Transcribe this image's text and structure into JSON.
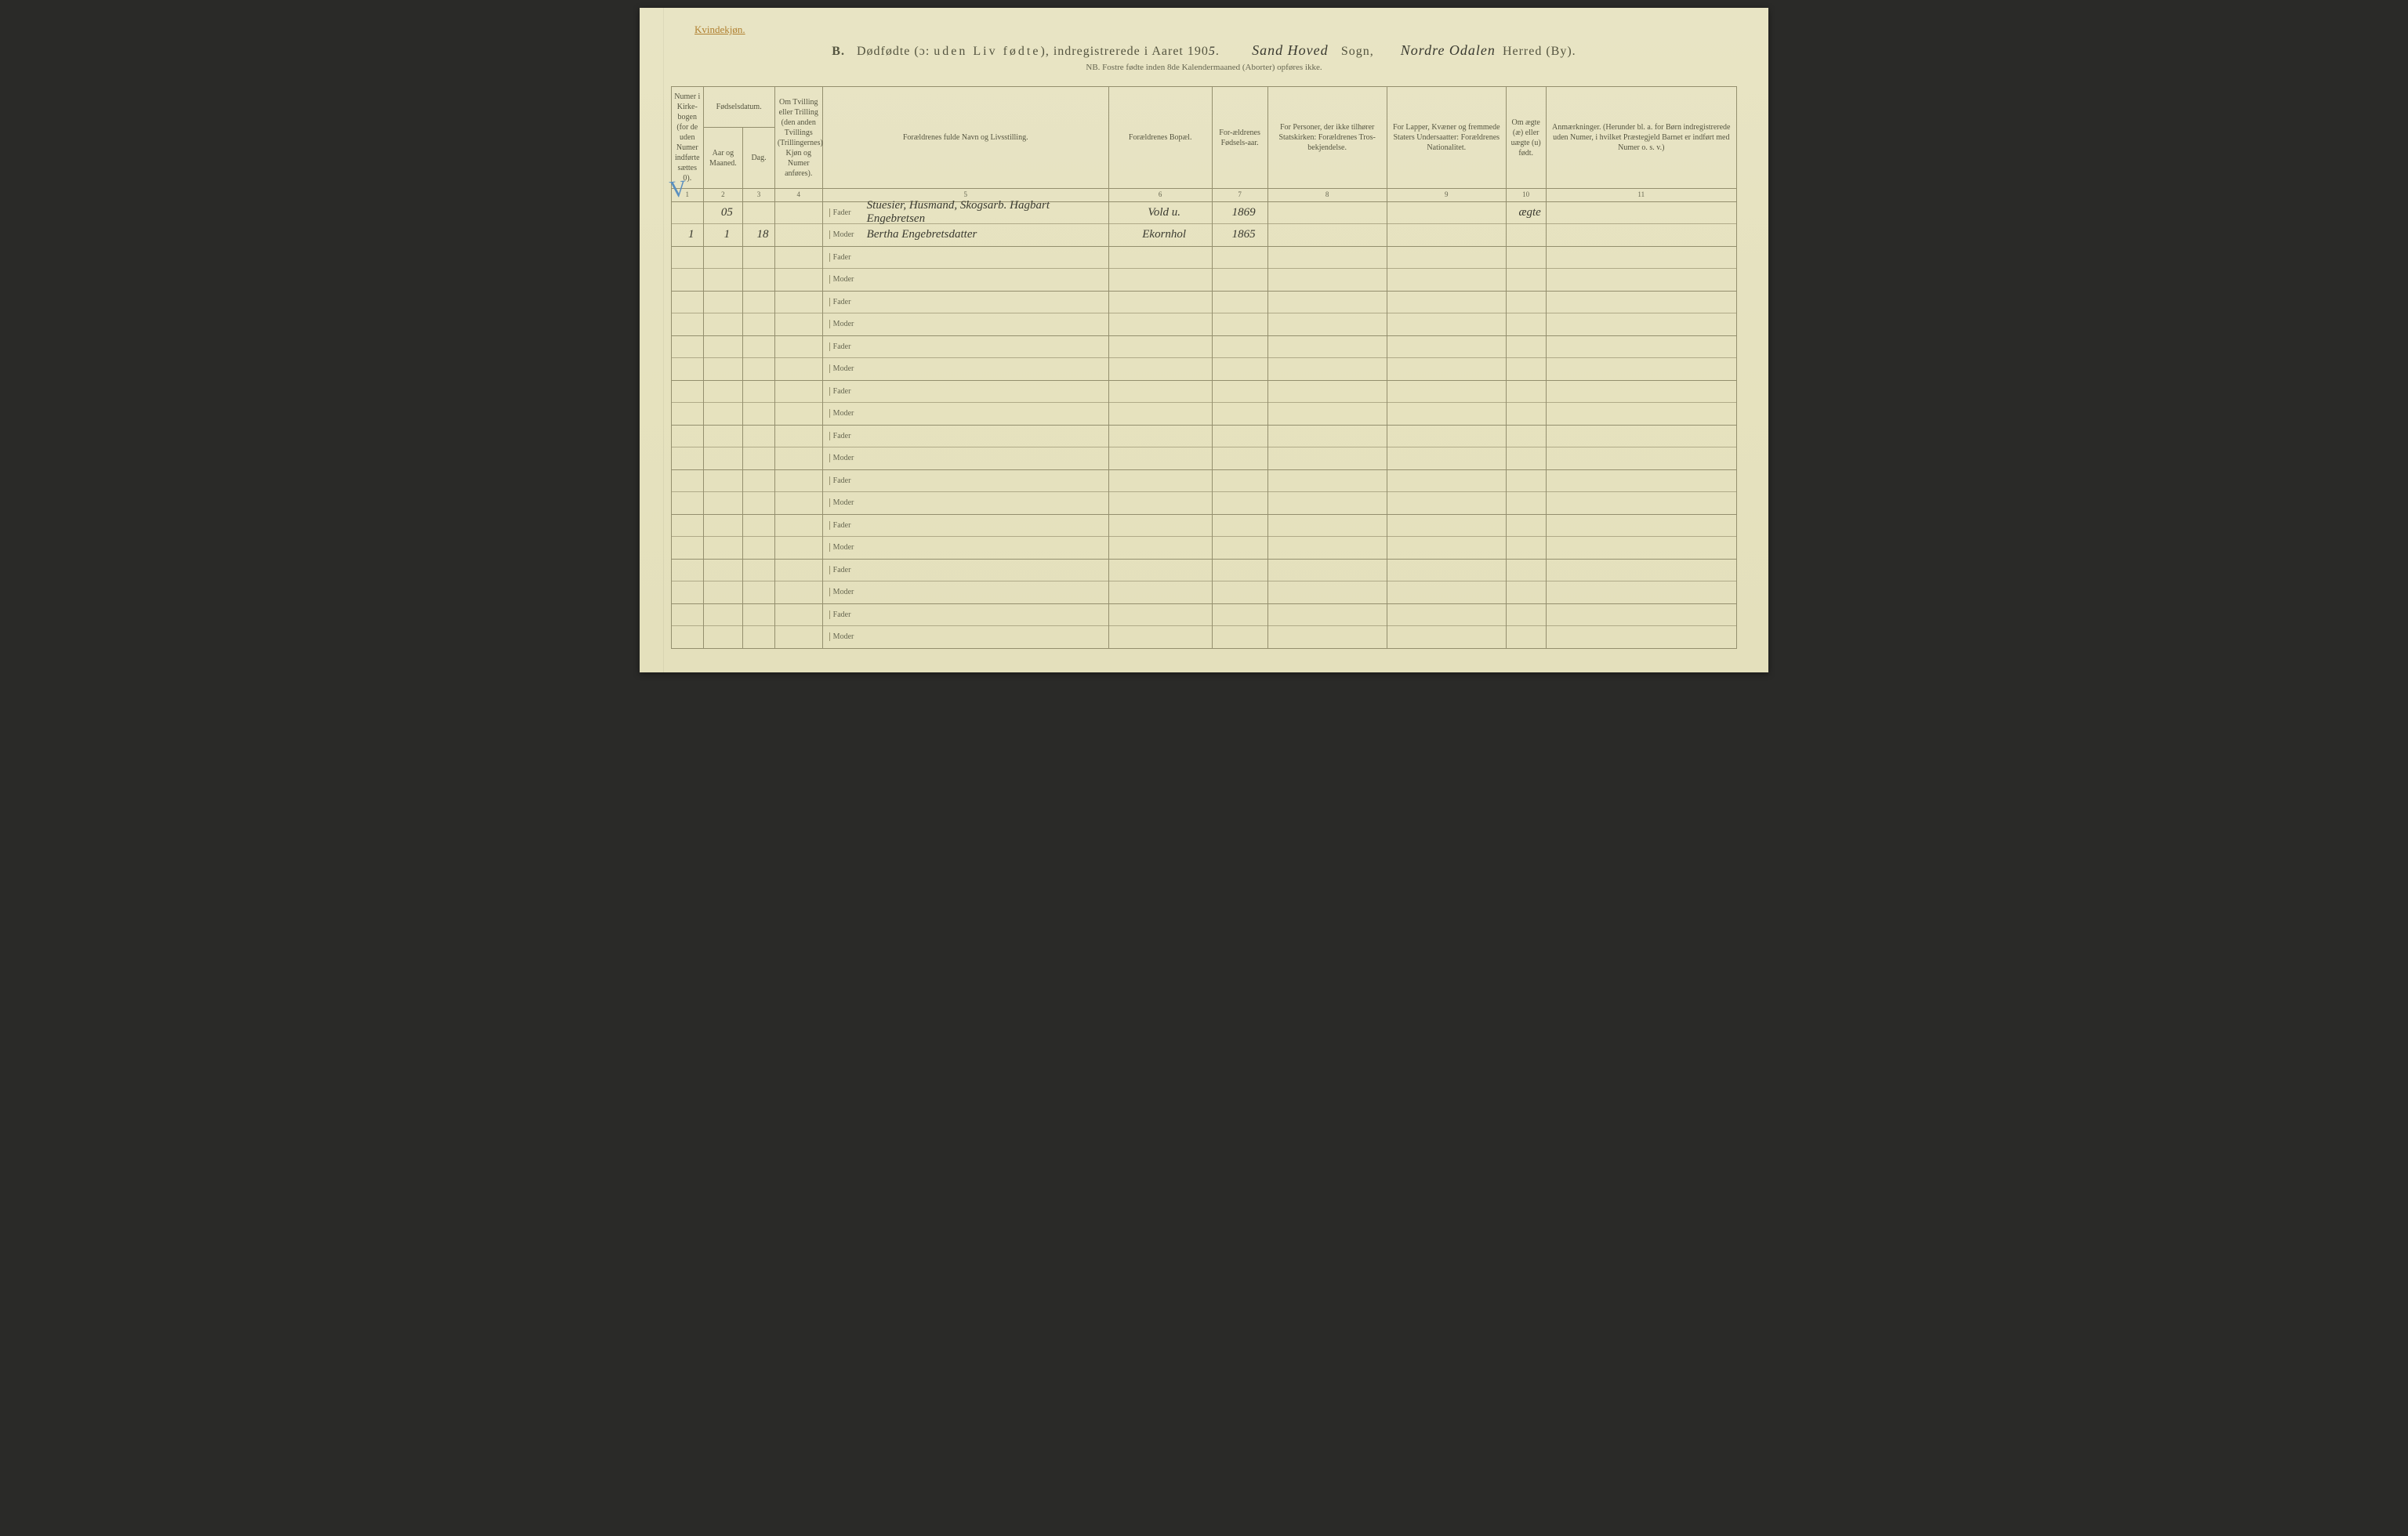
{
  "header": {
    "gender_label": "Kvindekjøn.",
    "section_letter": "B.",
    "title_prefix": "Dødfødte (ɔ:",
    "title_spaced": "uden Liv fødte",
    "title_suffix": "), indregistrerede i Aaret 190",
    "year_digit": "5",
    "sogn_value": "Sand Hoved",
    "sogn_label": "Sogn,",
    "herred_value": "Nordre Odalen",
    "herred_label": "Herred (By).",
    "subtitle": "NB.  Fostre fødte inden 8de Kalendermaaned (Aborter) opføres ikke."
  },
  "columns": {
    "c1": "Numer i Kirke-bogen (for de uden Numer indførte sættes 0).",
    "c2_group": "Fødselsdatum.",
    "c2a": "Aar og Maaned.",
    "c2b": "Dag.",
    "c4": "Om Tvilling eller Trilling (den anden Tvillings (Trillingernes) Kjøn og Numer anføres).",
    "c5": "Forældrenes fulde Navn og Livsstilling.",
    "c6": "Forældrenes Bopæl.",
    "c7": "For-ældrenes Fødsels-aar.",
    "c8": "For Personer, der ikke tilhører Statskirken: Forældrenes Tros-bekjendelse.",
    "c9": "For Lapper, Kvæner og fremmede Staters Undersaatter: Forældrenes Nationalitet.",
    "c10": "Om ægte (æ) eller uægte (u) født.",
    "c11": "Anmærkninger.\n(Herunder bl. a. for Børn indregistrerede uden Numer, i hvilket Præstegjeld Barnet er indført med Numer o. s. v.)",
    "nums": [
      "1",
      "2",
      "3",
      "4",
      "5",
      "6",
      "7",
      "8",
      "9",
      "10",
      "11"
    ]
  },
  "row_labels": {
    "fader": "Fader",
    "moder": "Moder"
  },
  "entries": [
    {
      "num": "1",
      "year_month_top": "05",
      "year_month": "1",
      "day": "18",
      "twin": "",
      "fader_name": "Stuesier, Husmand, Skogsarb. Hagbart Engebretsen",
      "moder_name": "Bertha Engebretsdatter",
      "bopel_fader": "Vold u.",
      "bopel_moder": "Ekornhol",
      "fodselsaar_fader": "1869",
      "fodselsaar_moder": "1865",
      "tros": "",
      "nat": "",
      "aegte": "ægte",
      "anm": ""
    },
    {},
    {},
    {},
    {},
    {},
    {},
    {},
    {},
    {}
  ],
  "marginal": {
    "check": "V"
  },
  "colors": {
    "paper": "#e8e4c4",
    "ink": "#4a4a3a",
    "rule": "#948f6e",
    "accent_orange": "#b08030",
    "pencil_blue": "#5a8fbf"
  }
}
